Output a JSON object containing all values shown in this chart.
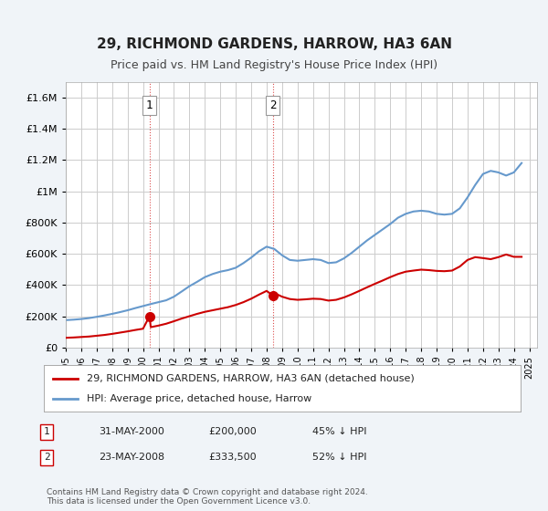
{
  "title": "29, RICHMOND GARDENS, HARROW, HA3 6AN",
  "subtitle": "Price paid vs. HM Land Registry's House Price Index (HPI)",
  "ylabel": "",
  "xlim_start": 1995.0,
  "xlim_end": 2025.5,
  "ylim": [
    0,
    1700000
  ],
  "yticks": [
    0,
    200000,
    400000,
    600000,
    800000,
    1000000,
    1200000,
    1400000,
    1600000
  ],
  "ytick_labels": [
    "£0",
    "£200K",
    "£400K",
    "£600K",
    "£800K",
    "£1M",
    "£1.2M",
    "£1.4M",
    "£1.6M"
  ],
  "purchase1_x": 2000.42,
  "purchase1_y": 200000,
  "purchase1_label": "1",
  "purchase1_date": "31-MAY-2000",
  "purchase1_price": "£200,000",
  "purchase1_hpi": "45% ↓ HPI",
  "purchase2_x": 2008.39,
  "purchase2_y": 333500,
  "purchase2_label": "2",
  "purchase2_date": "23-MAY-2008",
  "purchase2_price": "£333,500",
  "purchase2_hpi": "52% ↓ HPI",
  "legend_entry1": "29, RICHMOND GARDENS, HARROW, HA3 6AN (detached house)",
  "legend_entry2": "HPI: Average price, detached house, Harrow",
  "footer": "Contains HM Land Registry data © Crown copyright and database right 2024.\nThis data is licensed under the Open Government Licence v3.0.",
  "line_red_color": "#cc0000",
  "line_blue_color": "#6699cc",
  "background_color": "#f0f4f8",
  "plot_bg_color": "#ffffff",
  "grid_color": "#cccccc",
  "hpi_x": [
    1995,
    1995.5,
    1996,
    1996.5,
    1997,
    1997.5,
    1998,
    1998.5,
    1999,
    1999.5,
    2000,
    2000.5,
    2001,
    2001.5,
    2002,
    2002.5,
    2003,
    2003.5,
    2004,
    2004.5,
    2005,
    2005.5,
    2006,
    2006.5,
    2007,
    2007.5,
    2008,
    2008.5,
    2009,
    2009.5,
    2010,
    2010.5,
    2011,
    2011.5,
    2012,
    2012.5,
    2013,
    2013.5,
    2014,
    2014.5,
    2015,
    2015.5,
    2016,
    2016.5,
    2017,
    2017.5,
    2018,
    2018.5,
    2019,
    2019.5,
    2020,
    2020.5,
    2021,
    2021.5,
    2022,
    2022.5,
    2023,
    2023.5,
    2024,
    2024.5
  ],
  "hpi_y": [
    175000,
    178000,
    182000,
    188000,
    196000,
    205000,
    215000,
    226000,
    238000,
    252000,
    265000,
    278000,
    290000,
    302000,
    325000,
    358000,
    392000,
    420000,
    450000,
    470000,
    485000,
    495000,
    510000,
    540000,
    575000,
    615000,
    645000,
    630000,
    590000,
    560000,
    555000,
    560000,
    565000,
    560000,
    540000,
    545000,
    570000,
    605000,
    645000,
    685000,
    720000,
    755000,
    790000,
    830000,
    855000,
    870000,
    875000,
    870000,
    855000,
    850000,
    855000,
    890000,
    960000,
    1040000,
    1110000,
    1130000,
    1120000,
    1100000,
    1120000,
    1180000
  ],
  "red_x": [
    1995,
    1995.5,
    1996,
    1996.5,
    1997,
    1997.5,
    1998,
    1998.5,
    1999,
    1999.5,
    2000,
    2000.42,
    2000.5,
    2001,
    2001.5,
    2002,
    2002.5,
    2003,
    2003.5,
    2004,
    2004.5,
    2005,
    2005.5,
    2006,
    2006.5,
    2007,
    2007.5,
    2008,
    2008.39,
    2008.5,
    2009,
    2009.5,
    2010,
    2010.5,
    2011,
    2011.5,
    2012,
    2012.5,
    2013,
    2013.5,
    2014,
    2014.5,
    2015,
    2015.5,
    2016,
    2016.5,
    2017,
    2017.5,
    2018,
    2018.5,
    2019,
    2019.5,
    2020,
    2020.5,
    2021,
    2021.5,
    2022,
    2022.5,
    2023,
    2023.5,
    2024,
    2024.5
  ],
  "red_y": [
    62000,
    64000,
    67000,
    70000,
    75000,
    80000,
    87000,
    95000,
    103000,
    112000,
    120000,
    200000,
    130000,
    140000,
    152000,
    168000,
    185000,
    200000,
    215000,
    228000,
    238000,
    248000,
    258000,
    272000,
    290000,
    312000,
    338000,
    362000,
    333500,
    348000,
    325000,
    310000,
    305000,
    308000,
    312000,
    310000,
    300000,
    305000,
    320000,
    340000,
    362000,
    385000,
    407000,
    428000,
    450000,
    470000,
    485000,
    492000,
    498000,
    495000,
    490000,
    488000,
    492000,
    518000,
    560000,
    578000,
    572000,
    565000,
    578000,
    595000,
    580000,
    580000
  ]
}
